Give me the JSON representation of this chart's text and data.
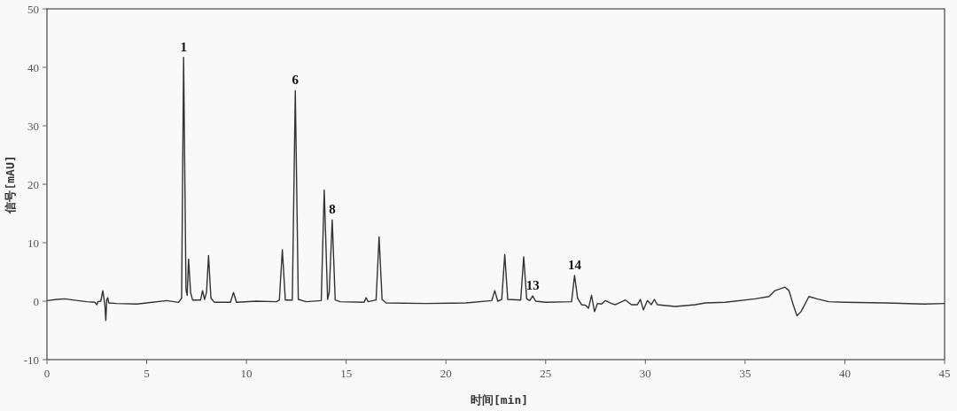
{
  "chart_data": {
    "type": "line",
    "xlabel": "时间[min]",
    "ylabel": "信号[mAU]",
    "xlim": [
      0,
      45
    ],
    "ylim": [
      -10,
      50
    ],
    "xticks": [
      0,
      5,
      10,
      15,
      20,
      25,
      30,
      35,
      40,
      45
    ],
    "yticks": [
      -10,
      0,
      10,
      20,
      30,
      40,
      50
    ],
    "x": [
      0,
      0.5,
      0.9,
      1.3,
      2.0,
      2.4,
      2.5,
      2.55,
      2.7,
      2.8,
      2.9,
      2.95,
      3.0,
      3.05,
      3.1,
      3.5,
      4.5,
      5.0,
      6.0,
      6.6,
      6.75,
      6.85,
      6.97,
      7.03,
      7.1,
      7.2,
      7.3,
      7.7,
      7.8,
      7.9,
      8.0,
      8.1,
      8.22,
      8.4,
      9.2,
      9.35,
      9.5,
      10.5,
      11.5,
      11.65,
      11.8,
      11.95,
      12.3,
      12.45,
      12.6,
      13.0,
      13.75,
      13.9,
      14.07,
      14.15,
      14.3,
      14.45,
      14.7,
      15.9,
      16.0,
      16.1,
      16.5,
      16.65,
      16.8,
      17.0,
      19,
      21,
      22.3,
      22.45,
      22.6,
      22.8,
      22.95,
      23.1,
      23.75,
      23.9,
      24.05,
      24.2,
      24.35,
      24.5,
      25,
      26.3,
      26.45,
      26.6,
      26.8,
      27.0,
      27.15,
      27.3,
      27.45,
      27.6,
      27.8,
      28.0,
      28.3,
      28.5,
      29.0,
      29.3,
      29.6,
      29.75,
      29.9,
      30.1,
      30.3,
      30.45,
      30.6,
      31.5,
      32.5,
      33,
      34,
      35.5,
      36.2,
      36.5,
      37.0,
      37.2,
      37.4,
      37.6,
      37.8,
      38.2,
      38.6,
      39.2,
      40,
      42,
      44,
      45
    ],
    "series": [
      {
        "color": "#333333",
        "values": [
          0.1,
          0.3,
          0.4,
          0.2,
          -0.1,
          -0.2,
          -0.6,
          -0.1,
          0,
          1.8,
          -0.5,
          -3.3,
          0.3,
          0.6,
          -0.3,
          -0.4,
          -0.5,
          -0.3,
          0.1,
          -0.2,
          0.5,
          41.7,
          2,
          1.0,
          7.2,
          1.5,
          0.2,
          0.2,
          1.8,
          0.3,
          1.5,
          7.8,
          0.5,
          -0.2,
          -0.2,
          1.5,
          -0.2,
          0,
          -0.1,
          0.2,
          8.8,
          0.2,
          0.2,
          36.0,
          0.3,
          -0.1,
          0.1,
          19.0,
          0.3,
          1.5,
          13.9,
          0.2,
          -0.1,
          -0.2,
          0.6,
          -0.1,
          0.2,
          11.0,
          0.3,
          -0.3,
          -0.4,
          -0.3,
          0.1,
          1.8,
          0,
          0.3,
          8.0,
          0.3,
          0.2,
          7.6,
          0.4,
          0.1,
          0.9,
          0.0,
          -0.2,
          -0.1,
          4.4,
          0.5,
          -0.6,
          -0.7,
          -1.2,
          1.0,
          -1.8,
          -0.4,
          -0.5,
          0.1,
          -0.4,
          -0.6,
          0.2,
          -0.6,
          -0.6,
          0.3,
          -1.5,
          0.1,
          -0.6,
          0.3,
          -0.6,
          -0.9,
          -0.6,
          -0.3,
          -0.2,
          0.4,
          0.8,
          1.8,
          2.4,
          1.8,
          -0.5,
          -2.5,
          -1.8,
          0.8,
          0.4,
          -0.1,
          -0.2,
          -0.3,
          -0.5,
          -0.4
        ]
      }
    ],
    "annotations": [
      {
        "text": "1",
        "x": 6.85,
        "y": 41.7
      },
      {
        "text": "6",
        "x": 12.45,
        "y": 36.0
      },
      {
        "text": "8",
        "x": 14.3,
        "y": 13.9
      },
      {
        "text": "13",
        "x": 24.35,
        "y": 0.9
      },
      {
        "text": "14",
        "x": 26.45,
        "y": 4.4
      }
    ]
  }
}
